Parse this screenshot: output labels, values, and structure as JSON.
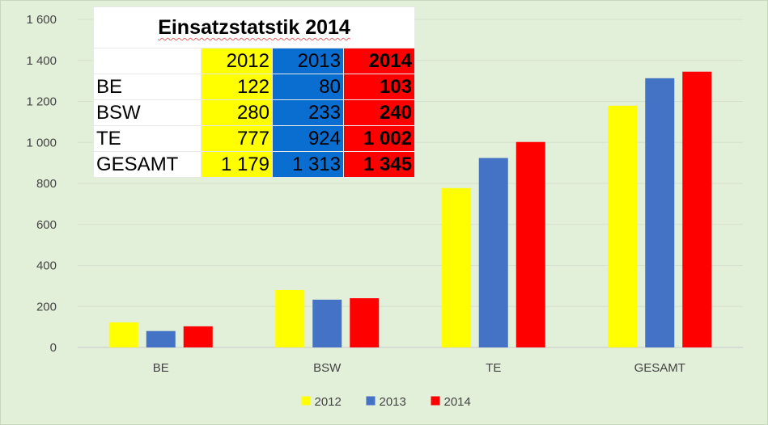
{
  "chart_data": {
    "type": "bar",
    "categories": [
      "BE",
      "BSW",
      "TE",
      "GESAMT"
    ],
    "series": [
      {
        "name": "2012",
        "color": "#ffff00",
        "values": [
          122,
          280,
          777,
          1179
        ]
      },
      {
        "name": "2013",
        "color": "#4472c4",
        "values": [
          80,
          233,
          924,
          1313
        ]
      },
      {
        "name": "2014",
        "color": "#ff0000",
        "values": [
          103,
          240,
          1002,
          1345
        ]
      }
    ],
    "ylim": [
      0,
      1600
    ],
    "yticks": [
      0,
      200,
      400,
      600,
      800,
      1000,
      1200,
      1400,
      1600
    ],
    "ytick_labels": [
      "0",
      "200",
      "400",
      "600",
      "800",
      "1 000",
      "1 200",
      "1 400",
      "1 600"
    ],
    "grid": true,
    "legend": "bottom"
  },
  "table": {
    "title": "Einsatzstatstik 2014",
    "years": [
      "2012",
      "2013",
      "2014"
    ],
    "rows": [
      {
        "label": "BE",
        "values": [
          "122",
          "80",
          "103"
        ]
      },
      {
        "label": "BSW",
        "values": [
          "280",
          "233",
          "240"
        ]
      },
      {
        "label": "TE",
        "values": [
          "777",
          "924",
          "1 002"
        ]
      },
      {
        "label": "GESAMT",
        "values": [
          "1 179",
          "1 313",
          "1 345"
        ]
      }
    ]
  }
}
